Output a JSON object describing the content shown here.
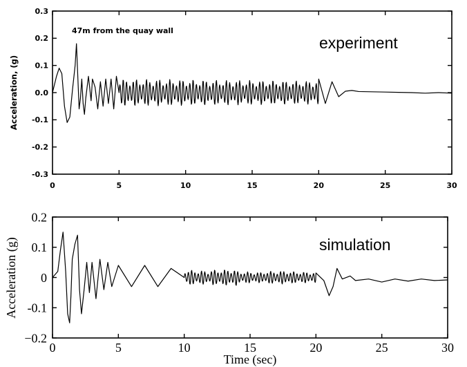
{
  "chart_data": [
    {
      "type": "line",
      "annotation": "47m from the quay wall",
      "label": "experiment",
      "title": "",
      "xlabel": "",
      "ylabel": "Acceleration, (g)",
      "xlim": [
        0,
        30
      ],
      "ylim": [
        -0.3,
        0.3
      ],
      "xticks": [
        0,
        5,
        10,
        15,
        20,
        25,
        30
      ],
      "yticks": [
        -0.3,
        -0.2,
        -0.1,
        0.0,
        0.1,
        0.2,
        0.3
      ],
      "xtick_labels": [
        "0",
        "5",
        "10",
        "15",
        "20",
        "25",
        "30"
      ],
      "ytick_labels": [
        "-0.3",
        "-0.2",
        "-0.1",
        "0.0",
        "0.1",
        "0.2",
        "0.3"
      ],
      "grid": false,
      "series": [
        {
          "x": [
            0,
            0.3,
            0.5,
            0.7,
            0.9,
            1.1,
            1.3,
            1.5,
            1.7,
            1.8,
            1.9,
            2.0,
            2.1,
            2.2,
            2.3,
            2.4,
            2.5,
            2.7,
            2.9,
            3.0,
            3.2,
            3.4,
            3.6,
            3.8,
            4.0,
            4.2,
            4.4,
            4.6,
            4.8,
            5.0,
            20.0,
            20.5,
            21.0,
            21.5,
            22.0,
            22.5,
            23.0,
            24.0,
            25.0,
            26.0,
            27.0,
            28.0,
            29.0,
            30.0
          ],
          "y": [
            0,
            0.06,
            0.09,
            0.07,
            -0.05,
            -0.11,
            -0.09,
            0.01,
            0.1,
            0.18,
            0.06,
            -0.06,
            -0.02,
            0.05,
            -0.04,
            -0.08,
            -0.02,
            0.06,
            -0.03,
            0.05,
            0.02,
            -0.06,
            0.04,
            -0.05,
            0.05,
            -0.04,
            0.05,
            -0.06,
            0.06,
            -0.05,
            0.05,
            -0.04,
            0.04,
            -0.015,
            0.005,
            0.008,
            0.004,
            0.003,
            0.002,
            0.001,
            0.0,
            -0.002,
            0.0,
            -0.002
          ]
        }
      ]
    },
    {
      "type": "line",
      "label": "simulation",
      "title": "",
      "xlabel": "Time (sec)",
      "ylabel": "Acceleration (g)",
      "xlim": [
        0,
        30
      ],
      "ylim": [
        -0.2,
        0.2
      ],
      "xticks": [
        0,
        5,
        10,
        15,
        20,
        25,
        30
      ],
      "yticks": [
        -0.2,
        -0.1,
        0,
        0.1,
        0.2
      ],
      "xtick_labels": [
        "0",
        "5",
        "10",
        "15",
        "20",
        "25",
        "30"
      ],
      "ytick_labels": [
        "−0.2",
        "-0.1",
        "0",
        "0.1",
        "0.2"
      ],
      "grid": false,
      "series": [
        {
          "x": [
            0,
            0.4,
            0.6,
            0.8,
            1.0,
            1.15,
            1.3,
            1.4,
            1.5,
            1.7,
            1.9,
            2.05,
            2.2,
            2.4,
            2.6,
            2.8,
            3.0,
            3.3,
            3.6,
            3.9,
            4.2,
            4.5,
            5.0,
            6.0,
            7.0,
            8.0,
            9.0,
            10.0,
            12.0,
            14.0,
            16.0,
            18.0,
            20.0,
            20.6,
            21.0,
            21.3,
            21.6,
            22.0,
            22.6,
            23.0,
            24.0,
            25.0,
            26.0,
            27.0,
            28.0,
            29.0,
            30.0
          ],
          "y": [
            0,
            0.02,
            0.09,
            0.15,
            0.02,
            -0.12,
            -0.15,
            -0.06,
            0.06,
            0.11,
            0.14,
            -0.04,
            -0.12,
            -0.04,
            0.05,
            -0.05,
            0.05,
            -0.07,
            0.06,
            -0.04,
            0.05,
            -0.03,
            0.04,
            -0.03,
            0.04,
            -0.03,
            0.03,
            -0.025,
            0.025,
            -0.02,
            0.02,
            -0.02,
            0.015,
            -0.01,
            -0.06,
            -0.03,
            0.03,
            -0.005,
            0.005,
            -0.01,
            -0.005,
            -0.015,
            -0.005,
            -0.012,
            -0.005,
            -0.01,
            -0.008
          ]
        }
      ]
    }
  ]
}
